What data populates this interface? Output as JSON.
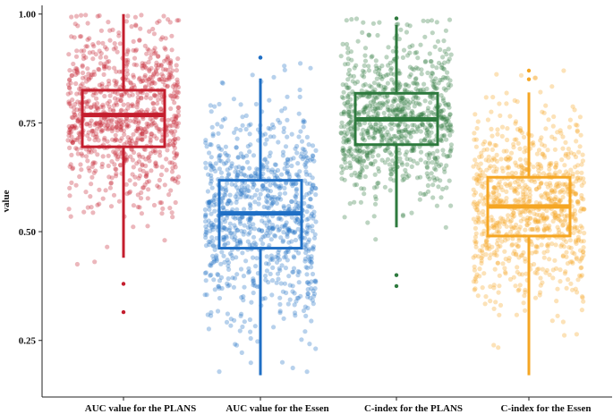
{
  "chart_data": {
    "type": "box",
    "title": "",
    "xlabel": "",
    "ylabel": "value",
    "ylim": [
      0.12,
      1.02
    ],
    "yticks": [
      0.25,
      0.5,
      0.75,
      1.0
    ],
    "ytick_labels": [
      "0.25",
      "0.50",
      "0.75",
      "1.00"
    ],
    "grid": false,
    "legend": "none",
    "categories": [
      "AUC value for the PLANS",
      "AUC value for the Essen",
      "C-index for the PLANS",
      "C-index for the Essen"
    ],
    "series": [
      {
        "category": "AUC value for the PLANS",
        "color": "#C41E2E",
        "whisker_low": 0.44,
        "q1": 0.695,
        "median": 0.768,
        "q3": 0.825,
        "whisker_high": 1.0,
        "outliers": [
          0.38,
          0.315
        ],
        "points_min": 0.31,
        "points_max": 1.0
      },
      {
        "category": "AUC value for the Essen",
        "color": "#1F6FC5",
        "whisker_low": 0.17,
        "q1": 0.462,
        "median": 0.542,
        "q3": 0.618,
        "whisker_high": 0.852,
        "outliers": [
          0.9,
          0.9
        ],
        "points_min": 0.17,
        "points_max": 0.9
      },
      {
        "category": "C-index for the PLANS",
        "color": "#2E7A3E",
        "whisker_low": 0.51,
        "q1": 0.7,
        "median": 0.758,
        "q3": 0.818,
        "whisker_high": 0.975,
        "outliers": [
          0.4,
          0.375,
          0.99
        ],
        "points_min": 0.37,
        "points_max": 0.99
      },
      {
        "category": "C-index for the Essen",
        "color": "#F5A623",
        "whisker_low": 0.17,
        "q1": 0.49,
        "median": 0.558,
        "q3": 0.625,
        "whisker_high": 0.82,
        "outliers": [
          0.87,
          0.85
        ],
        "points_min": 0.16,
        "points_max": 0.87
      }
    ]
  }
}
